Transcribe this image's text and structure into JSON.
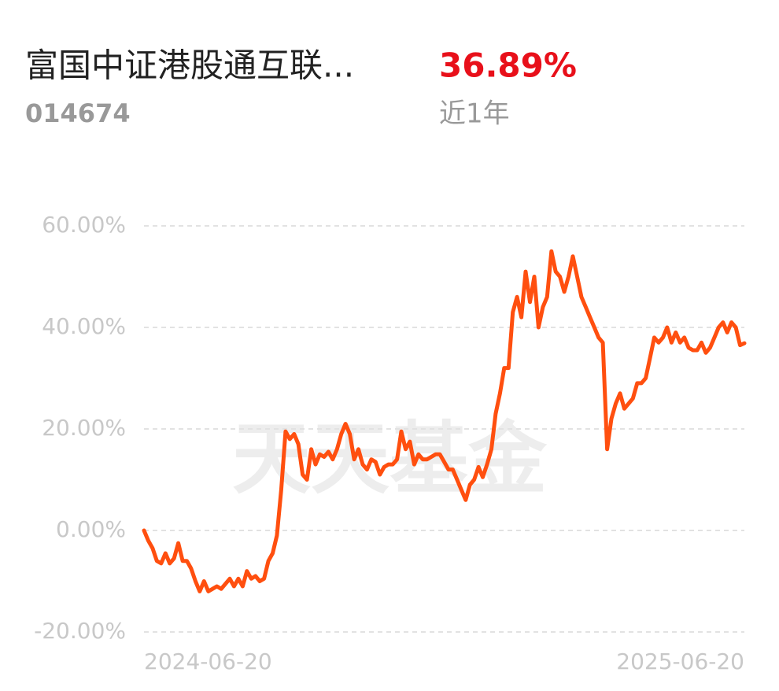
{
  "chart_data": {
    "type": "line",
    "title": "富国中证港股通互联...",
    "code": "014674",
    "return": "36.89%",
    "return_period": "近1年",
    "watermark": "天天基金",
    "categories": [
      "2024-06-20",
      null,
      null,
      null,
      null,
      null,
      null,
      null,
      null,
      null,
      null,
      null,
      null,
      null,
      null,
      null,
      null,
      null,
      null,
      null,
      null,
      null,
      null,
      null,
      null,
      null,
      null,
      null,
      null,
      null,
      null,
      null,
      null,
      null,
      null,
      null,
      null,
      null,
      null,
      null,
      null,
      null,
      null,
      null,
      null,
      null,
      null,
      null,
      null,
      null,
      null,
      null,
      null,
      null,
      null,
      null,
      null,
      null,
      null,
      null,
      null,
      null,
      null,
      null,
      null,
      null,
      null,
      null,
      null,
      null,
      null,
      null,
      null,
      null,
      null,
      null,
      null,
      null,
      null,
      null,
      null,
      null,
      null,
      null,
      null,
      null,
      null,
      null,
      null,
      null,
      null,
      null,
      null,
      null,
      null,
      null,
      null,
      null,
      null,
      null,
      null,
      null,
      null,
      null,
      null,
      null,
      null,
      null,
      null,
      null,
      null,
      null,
      null,
      null,
      null,
      null,
      null,
      null,
      null,
      null,
      null,
      null,
      null,
      null,
      null,
      null,
      null,
      null,
      null,
      null,
      null,
      null,
      null,
      null,
      null,
      null,
      null,
      null,
      null,
      null,
      "2025-06-20"
    ],
    "series": [
      {
        "color": "#ff4f0f",
        "values": [
          0,
          -2,
          -3.5,
          -6,
          -6.5,
          -4.5,
          -6.5,
          -5.5,
          -2.5,
          -6,
          -6,
          -7.5,
          -10,
          -12,
          -10,
          -12,
          -11.5,
          -11,
          -11.5,
          -10.5,
          -9.5,
          -11,
          -9.5,
          -11,
          -8,
          -9.5,
          -9,
          -10,
          -9.5,
          -6,
          -4.5,
          -1,
          8,
          19.5,
          18,
          19,
          17,
          11,
          10,
          16,
          13,
          15,
          14.5,
          15.5,
          14,
          16,
          19,
          21,
          19,
          14,
          16,
          13,
          12,
          14,
          13.5,
          11,
          12.5,
          13,
          13,
          14,
          19.5,
          16,
          17.5,
          13,
          15,
          14,
          14,
          14.5,
          15,
          15,
          13.5,
          12,
          12,
          10,
          8,
          6,
          9,
          10,
          12.5,
          10.5,
          13,
          16,
          23,
          27,
          32,
          32,
          43,
          46,
          42,
          51,
          45,
          50,
          40,
          44,
          46,
          55,
          51,
          50,
          47,
          50,
          54,
          50,
          46,
          44,
          42,
          40,
          38,
          37,
          16,
          22,
          25,
          27,
          24,
          25,
          26,
          29,
          29,
          30,
          34,
          38,
          37,
          38,
          40,
          37,
          39,
          37,
          38,
          36,
          35.5,
          35.5,
          37,
          35,
          36,
          38,
          40,
          41,
          39,
          41,
          40,
          36.5,
          36.89
        ]
      }
    ],
    "ylim": [
      -20,
      60
    ],
    "yticks": [
      {
        "value": -20,
        "label": "-20.00%"
      },
      {
        "value": 0,
        "label": "0.00%"
      },
      {
        "value": 20,
        "label": "20.00%"
      },
      {
        "value": 40,
        "label": "40.00%"
      },
      {
        "value": 60,
        "label": "60.00%"
      }
    ],
    "grid": true
  }
}
